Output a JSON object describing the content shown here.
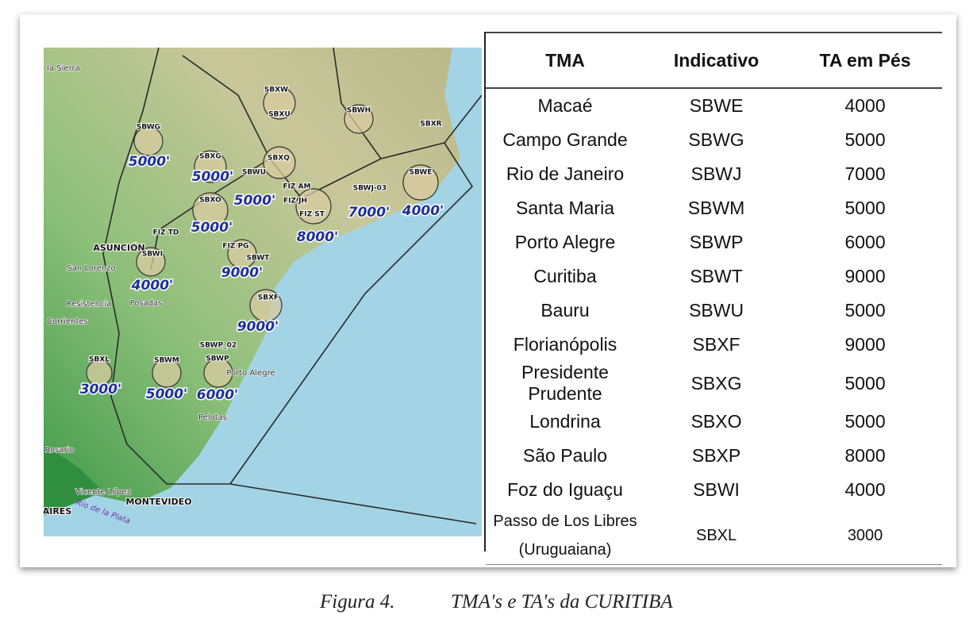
{
  "map": {
    "labels": [
      "la Sierra",
      "SBXW",
      "SBXU",
      "SBWH",
      "SBXR",
      "SBWG",
      "5000'",
      "SBXG",
      "5000'",
      "SBWU",
      "SBXQ",
      "SBWE",
      "SBXO",
      "5000'",
      "FIZ AM",
      "FIZ JH",
      "FIZ ST",
      "SBWJ-03",
      "7000'",
      "4000'",
      "5000'",
      "8000'",
      "FIZ TD",
      "ASUNCIÓN",
      "SBWI",
      "FIZ PG",
      "SBWT",
      "9000'",
      "San Lorenzo",
      "4000'",
      "SBXF",
      "Resistencia",
      "Posadas",
      "Corrientes",
      "9000'",
      "SBWP_02",
      "SBXL",
      "SBWM",
      "SBWP",
      "Porto Alegre",
      "3000'",
      "5000'",
      "6000'",
      "Pelotas",
      "Rosario",
      "Vicente López",
      "MONTEVIDEO",
      "AIRES",
      "Río de la Plata"
    ]
  },
  "table": {
    "header": [
      "TMA",
      "Indicativo",
      "TA em Pés"
    ],
    "rows": [
      [
        "Macaé",
        "SBWE",
        4000
      ],
      [
        "Campo Grande",
        "SBWG",
        5000
      ],
      [
        "Rio de Janeiro",
        "SBWJ",
        7000
      ],
      [
        "Santa Maria",
        "SBWM",
        5000
      ],
      [
        "Porto Alegre",
        "SBWP",
        6000
      ],
      [
        "Curitiba",
        "SBWT",
        9000
      ],
      [
        "Bauru",
        "SBWU",
        5000
      ],
      [
        "Florianópolis",
        "SBXF",
        9000
      ],
      [
        "Presidente Prudente",
        "SBXG",
        5000
      ],
      [
        "Londrina",
        "SBXO",
        5000
      ],
      [
        "São Paulo",
        "SBXP",
        8000
      ],
      [
        "Foz do Iguaçu",
        "SBWI",
        4000
      ],
      [
        "Passo de Los Libres (Uruguaiana)",
        "SBXL",
        3000
      ]
    ]
  },
  "caption": {
    "label": "Figura 4.",
    "text": "TMA's e TA's da CURITIBA"
  }
}
